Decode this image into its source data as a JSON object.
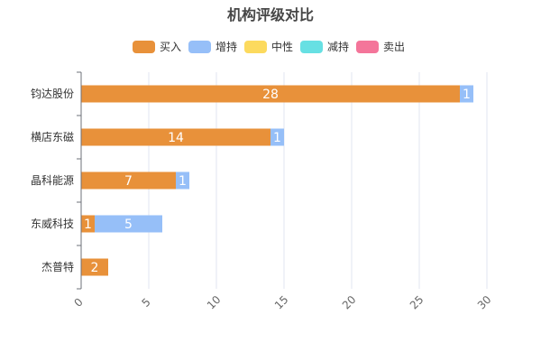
{
  "chart_data": {
    "type": "bar",
    "orientation": "horizontal",
    "stacked": true,
    "title": "机构评级对比",
    "categories": [
      "钧达股份",
      "横店东磁",
      "晶科能源",
      "东威科技",
      "杰普特"
    ],
    "series": [
      {
        "name": "买入",
        "color": "#E8913A",
        "values": [
          28,
          14,
          7,
          1,
          2
        ]
      },
      {
        "name": "增持",
        "color": "#96BFF8",
        "values": [
          1,
          1,
          1,
          5,
          0
        ]
      },
      {
        "name": "中性",
        "color": "#FCDA5E",
        "values": [
          0,
          0,
          0,
          0,
          0
        ]
      },
      {
        "name": "减持",
        "color": "#67E0E3",
        "values": [
          0,
          0,
          0,
          0,
          0
        ]
      },
      {
        "name": "卖出",
        "color": "#F4759A",
        "values": [
          0,
          0,
          0,
          0,
          0
        ]
      }
    ],
    "xlim": [
      0,
      30
    ],
    "xticks": [
      0,
      5,
      10,
      15,
      20,
      25,
      30
    ],
    "grid": true,
    "legend": "top"
  }
}
